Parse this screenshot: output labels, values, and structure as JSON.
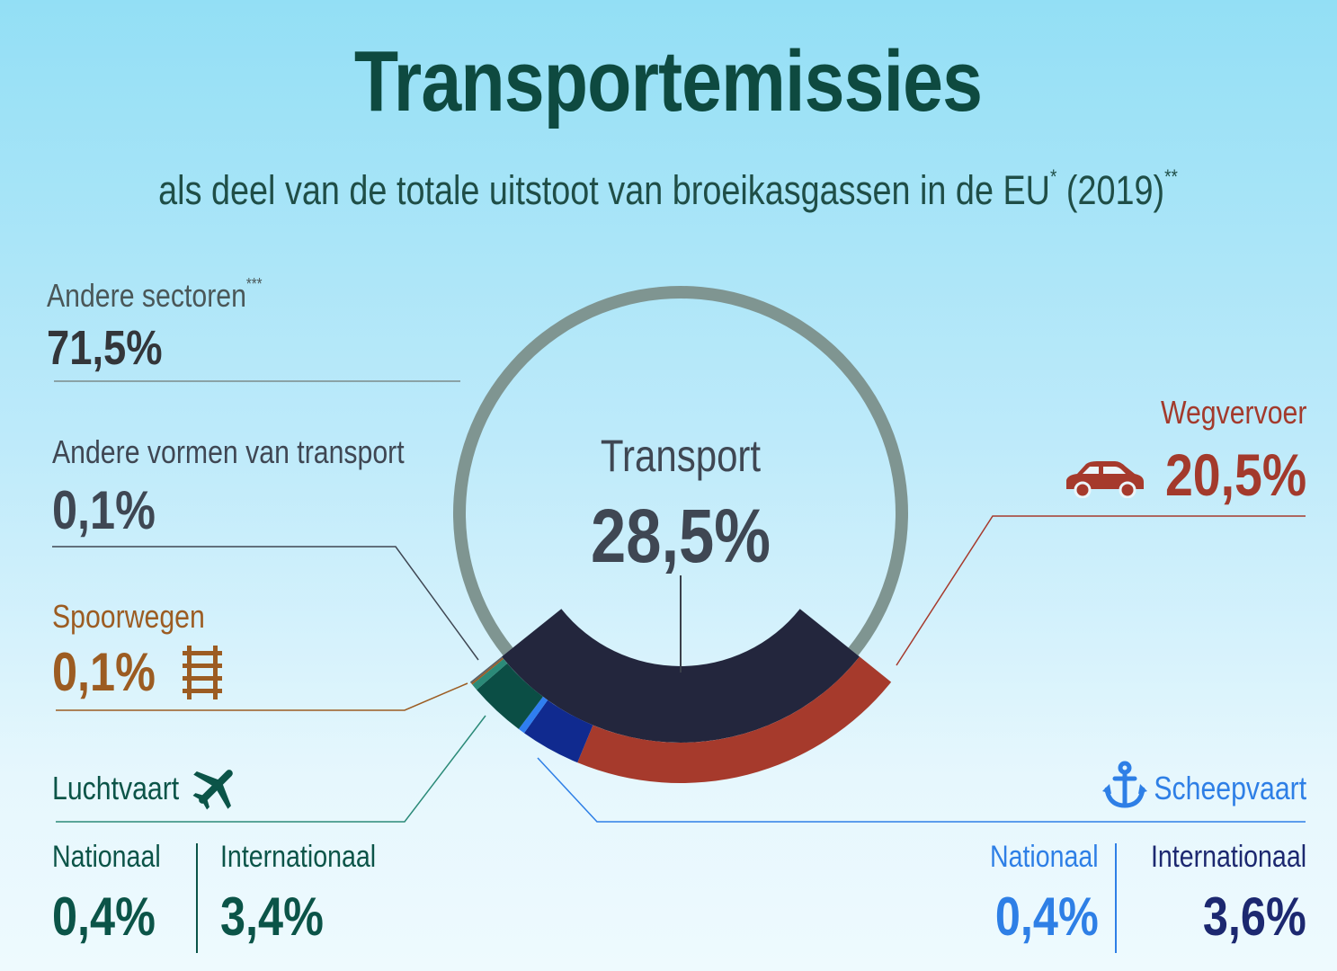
{
  "title": "Transportemissies",
  "subtitle": {
    "text": "als deel van de totale uitstoot van broeikasgassen in de EU",
    "sup1": "*",
    "year": " (2019)",
    "sup2": "**"
  },
  "center": {
    "label": "Transport",
    "value": "28,5%"
  },
  "labels": {
    "other_sectors": {
      "name": "Andere sectoren",
      "sup": "***",
      "value": "71,5%"
    },
    "other_transport": {
      "name": "Andere vormen van transport",
      "value": "0,1%"
    },
    "rail": {
      "name": "Spoorwegen",
      "value": "0,1%"
    },
    "road": {
      "name": "Wegvervoer",
      "value": "20,5%"
    },
    "aviation": {
      "name": "Luchtvaart",
      "nat_label": "Nationaal",
      "nat_value": "0,4%",
      "int_label": "Internationaal",
      "int_value": "3,4%"
    },
    "shipping": {
      "name": "Scheepvaart",
      "nat_label": "Nationaal",
      "nat_value": "0,4%",
      "int_label": "Internationaal",
      "int_value": "3,6%"
    }
  },
  "icons": {
    "road": "car-icon",
    "rail": "railway-track-icon",
    "aviation": "airplane-icon",
    "shipping": "anchor-icon"
  },
  "colors": {
    "other_sectors": "#7f9591",
    "transport_total": "#23263d",
    "road": "#a63a2c",
    "shipping_international": "#102a8f",
    "shipping_national": "#2f7ef0",
    "aviation_international": "#0b4e45",
    "aviation_national": "#2b8a78",
    "rail": "#9c5c22",
    "other_transport": "#5a6065"
  },
  "chart_data": {
    "type": "pie",
    "unit": "%",
    "outer_ring": [
      {
        "name": "Andere sectoren",
        "value": 71.5
      },
      {
        "name": "Transport",
        "value": 28.5
      }
    ],
    "transport_breakdown": [
      {
        "name": "Wegvervoer",
        "value": 20.5
      },
      {
        "name": "Scheepvaart Internationaal",
        "value": 3.6
      },
      {
        "name": "Scheepvaart Nationaal",
        "value": 0.4
      },
      {
        "name": "Luchtvaart Internationaal",
        "value": 3.4
      },
      {
        "name": "Luchtvaart Nationaal",
        "value": 0.4
      },
      {
        "name": "Spoorwegen",
        "value": 0.1
      },
      {
        "name": "Andere vormen van transport",
        "value": 0.1
      }
    ]
  }
}
